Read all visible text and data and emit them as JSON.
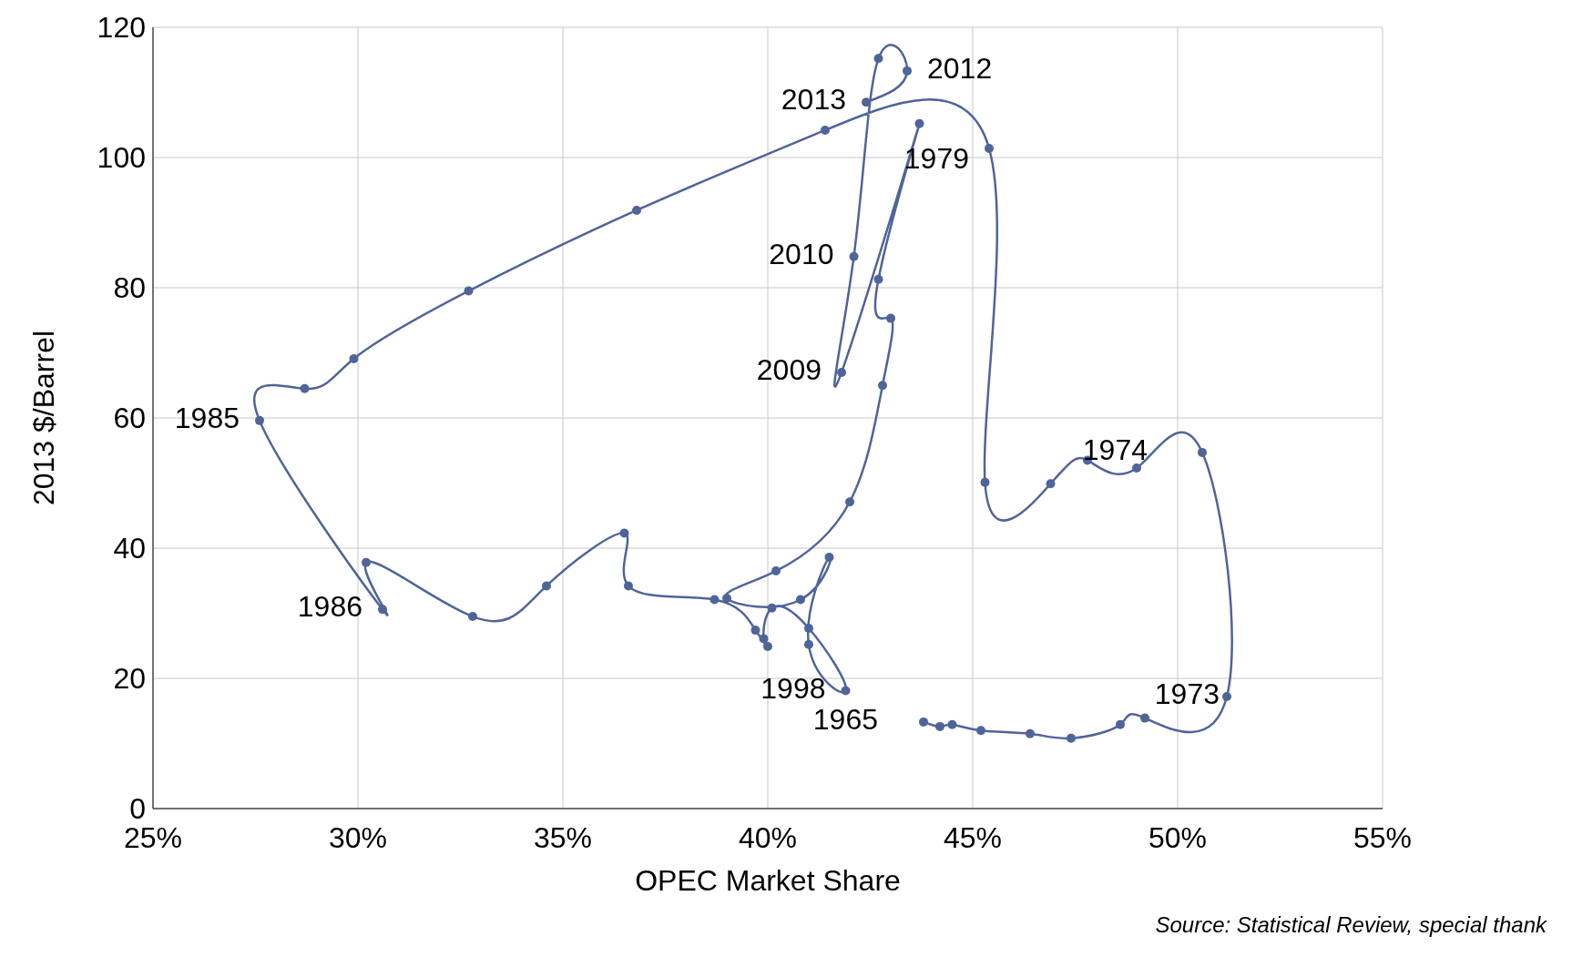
{
  "chart_data": {
    "type": "line",
    "xlabel": "OPEC Market Share",
    "ylabel": "2013 $/Barrel",
    "x": [
      43.8,
      44.2,
      44.5,
      45.2,
      46.4,
      47.4,
      48.6,
      49.2,
      51.2,
      50.6,
      49.0,
      47.8,
      46.9,
      45.3,
      45.4,
      41.4,
      36.8,
      32.7,
      29.9,
      28.7,
      27.6,
      30.6,
      30.2,
      32.8,
      34.6,
      36.5,
      36.6,
      38.7,
      39.7,
      40.0,
      39.9,
      40.1,
      41.0,
      41.9,
      41.0,
      41.5,
      40.8,
      39.0,
      40.2,
      42.0,
      42.8,
      43.0,
      42.7,
      43.7,
      41.8,
      42.1,
      42.7,
      43.4,
      42.4
    ],
    "series": [
      {
        "color": "#4f6499",
        "values": [
          13.3,
          12.6,
          12.9,
          12.0,
          11.5,
          10.8,
          12.9,
          13.9,
          17.2,
          54.7,
          52.3,
          53.5,
          49.9,
          50.1,
          101.4,
          104.2,
          91.9,
          79.5,
          69.1,
          64.5,
          59.6,
          30.6,
          37.8,
          29.5,
          34.2,
          42.3,
          34.2,
          32.1,
          27.4,
          24.9,
          26.1,
          30.8,
          27.7,
          18.1,
          25.2,
          38.6,
          32.1,
          32.3,
          36.5,
          47.1,
          65.0,
          75.3,
          81.3,
          105.2,
          67.0,
          84.8,
          115.2,
          113.3,
          108.5
        ]
      }
    ],
    "marker": "circle",
    "line_style": "solid",
    "grid": true,
    "legend": false,
    "xlim": [
      25,
      55
    ],
    "xticks": [
      {
        "value": 25,
        "label": "25%"
      },
      {
        "value": 30,
        "label": "30%"
      },
      {
        "value": 35,
        "label": "35%"
      },
      {
        "value": 40,
        "label": "40%"
      },
      {
        "value": 45,
        "label": "45%"
      },
      {
        "value": 50,
        "label": "50%"
      },
      {
        "value": 55,
        "label": "55%"
      }
    ],
    "ylim": [
      0,
      120
    ],
    "yticks": [
      0,
      20,
      40,
      60,
      80,
      100,
      120
    ],
    "annotations": [
      {
        "text": "2012",
        "x": 43.4,
        "y": 113.3
      },
      {
        "text": "2013",
        "x": 42.4,
        "y": 108.5
      },
      {
        "text": "1979",
        "x": 45.4,
        "y": 101.4
      },
      {
        "text": "2010",
        "x": 42.1,
        "y": 84.8
      },
      {
        "text": "2009",
        "x": 41.8,
        "y": 67.0
      },
      {
        "text": "1985",
        "x": 27.6,
        "y": 59.6
      },
      {
        "text": "1974",
        "x": 50.6,
        "y": 54.7
      },
      {
        "text": "1986",
        "x": 30.6,
        "y": 30.6
      },
      {
        "text": "1998",
        "x": 41.9,
        "y": 18.1
      },
      {
        "text": "1965",
        "x": 43.8,
        "y": 13.3
      },
      {
        "text": "1973",
        "x": 51.2,
        "y": 17.2
      },
      "Source: Statistical Review, special thank"
    ]
  }
}
